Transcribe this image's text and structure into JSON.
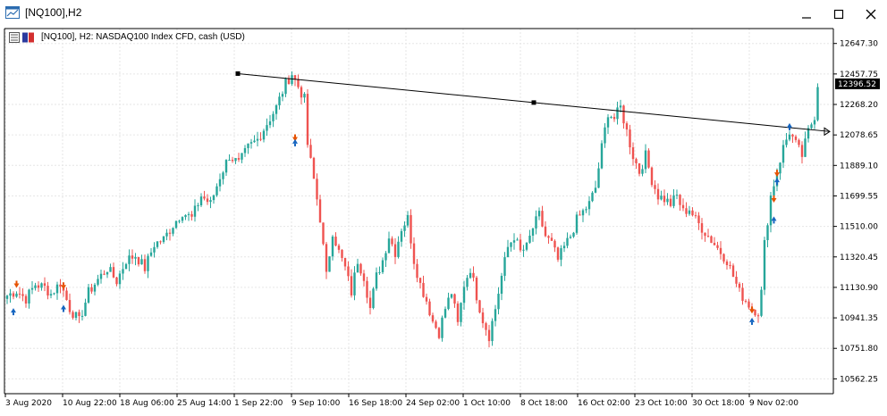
{
  "window": {
    "title": "[NQ100],H2",
    "icon": "chart-window-icon",
    "controls": [
      "minimize-icon",
      "maximize-icon",
      "close-icon"
    ]
  },
  "chart_info": "[NQ100], H2:  NASDAQ100 Index CFD, cash (USD)",
  "colors": {
    "bull": "#26a69a",
    "bear": "#ef5350",
    "grid": "#e6e6e6",
    "up_arrow": "#1565c0",
    "down_arrow": "#e65100",
    "price_label_bg": "#000000"
  },
  "chart_data": {
    "type": "candlestick",
    "symbol": "NQ100",
    "timeframe": "H2",
    "ylim": [
      10470,
      12740
    ],
    "yticks": [
      12647.3,
      12457.75,
      12268.2,
      12078.65,
      11889.1,
      11699.55,
      11510.0,
      11320.45,
      11130.9,
      10941.35,
      10751.8,
      10562.25
    ],
    "ytick_labels": [
      "12647.30",
      "12457.75",
      "12268.20",
      "12078.65",
      "11889.10",
      "11699.55",
      "11510.00",
      "11320.45",
      "11130.90",
      "10941.35",
      "10751.80",
      "10562.25"
    ],
    "xtick_labels": [
      "3 Aug 2020",
      "10 Aug 22:00",
      "18 Aug 06:00",
      "25 Aug 14:00",
      "1 Sep 22:00",
      "9 Sep 10:00",
      "16 Sep 18:00",
      "24 Sep 02:00",
      "1 Oct 10:00",
      "8 Oct 18:00",
      "16 Oct 02:00",
      "23 Oct 10:00",
      "30 Oct 18:00",
      "9 Nov 02:00"
    ],
    "current_price": 12396.52,
    "current_price_label": "12396.52",
    "close_path": [
      [
        0,
        11080
      ],
      [
        3,
        11110
      ],
      [
        6,
        11060
      ],
      [
        9,
        11150
      ],
      [
        12,
        11130
      ],
      [
        14,
        11090
      ],
      [
        17,
        11160
      ],
      [
        20,
        11000
      ],
      [
        23,
        10920
      ],
      [
        26,
        11100
      ],
      [
        29,
        11180
      ],
      [
        32,
        11250
      ],
      [
        35,
        11170
      ],
      [
        38,
        11300
      ],
      [
        41,
        11330
      ],
      [
        44,
        11250
      ],
      [
        47,
        11400
      ],
      [
        50,
        11430
      ],
      [
        53,
        11520
      ],
      [
        56,
        11600
      ],
      [
        59,
        11560
      ],
      [
        62,
        11700
      ],
      [
        65,
        11650
      ],
      [
        68,
        11820
      ],
      [
        71,
        11950
      ],
      [
        74,
        11900
      ],
      [
        77,
        12000
      ],
      [
        80,
        12050
      ],
      [
        83,
        12150
      ],
      [
        86,
        12250
      ],
      [
        89,
        12400
      ],
      [
        91,
        12460
      ],
      [
        93,
        12380
      ],
      [
        95,
        12300
      ],
      [
        96,
        12020
      ],
      [
        98,
        11800
      ],
      [
        100,
        11560
      ],
      [
        102,
        11200
      ],
      [
        104,
        11480
      ],
      [
        106,
        11350
      ],
      [
        108,
        11250
      ],
      [
        110,
        11100
      ],
      [
        112,
        11300
      ],
      [
        114,
        11200
      ],
      [
        116,
        11000
      ],
      [
        118,
        11200
      ],
      [
        120,
        11300
      ],
      [
        122,
        11450
      ],
      [
        124,
        11350
      ],
      [
        126,
        11500
      ],
      [
        128,
        11560
      ],
      [
        130,
        11300
      ],
      [
        132,
        11150
      ],
      [
        134,
        11050
      ],
      [
        136,
        10920
      ],
      [
        138,
        10850
      ],
      [
        140,
        11000
      ],
      [
        142,
        11100
      ],
      [
        144,
        10900
      ],
      [
        146,
        11150
      ],
      [
        148,
        11250
      ],
      [
        150,
        11080
      ],
      [
        152,
        10930
      ],
      [
        154,
        10830
      ],
      [
        156,
        11000
      ],
      [
        158,
        11200
      ],
      [
        160,
        11380
      ],
      [
        162,
        11450
      ],
      [
        164,
        11350
      ],
      [
        166,
        11380
      ],
      [
        168,
        11500
      ],
      [
        170,
        11580
      ],
      [
        172,
        11450
      ],
      [
        174,
        11400
      ],
      [
        176,
        11300
      ],
      [
        178,
        11380
      ],
      [
        180,
        11450
      ],
      [
        182,
        11550
      ],
      [
        184,
        11600
      ],
      [
        186,
        11650
      ],
      [
        188,
        11750
      ],
      [
        190,
        12000
      ],
      [
        192,
        12220
      ],
      [
        194,
        12180
      ],
      [
        196,
        12250
      ],
      [
        198,
        12100
      ],
      [
        200,
        11950
      ],
      [
        202,
        11850
      ],
      [
        204,
        11950
      ],
      [
        206,
        11800
      ],
      [
        208,
        11700
      ],
      [
        210,
        11680
      ],
      [
        212,
        11650
      ],
      [
        214,
        11700
      ],
      [
        216,
        11600
      ],
      [
        218,
        11620
      ],
      [
        220,
        11550
      ],
      [
        222,
        11500
      ],
      [
        224,
        11450
      ],
      [
        226,
        11400
      ],
      [
        228,
        11350
      ],
      [
        230,
        11300
      ],
      [
        232,
        11200
      ],
      [
        234,
        11100
      ],
      [
        236,
        11050
      ],
      [
        238,
        11000
      ],
      [
        240,
        10980
      ],
      [
        241,
        11100
      ],
      [
        242,
        11400
      ],
      [
        244,
        11700
      ],
      [
        246,
        11850
      ],
      [
        248,
        12000
      ],
      [
        250,
        12100
      ],
      [
        252,
        12020
      ],
      [
        254,
        11950
      ],
      [
        256,
        12100
      ],
      [
        258,
        12200
      ],
      [
        259,
        12396.52
      ]
    ],
    "trendline": {
      "from": [
        0,
        12460
      ],
      "to": [
        1,
        12100
      ],
      "anchor_points": [
        [
          0,
          12460
        ],
        [
          0.5,
          12280
        ]
      ]
    },
    "signals": [
      {
        "type": "up",
        "bar": 2,
        "price": 10980
      },
      {
        "type": "down",
        "bar": 3,
        "price": 11150
      },
      {
        "type": "up",
        "bar": 18,
        "price": 11000
      },
      {
        "type": "down",
        "bar": 18,
        "price": 11140
      },
      {
        "type": "down",
        "bar": 92,
        "price": 12060
      },
      {
        "type": "up",
        "bar": 92,
        "price": 12030
      },
      {
        "type": "up",
        "bar": 238,
        "price": 10920
      },
      {
        "type": "down",
        "bar": 238,
        "price": 10990
      },
      {
        "type": "up",
        "bar": 245,
        "price": 11550
      },
      {
        "type": "down",
        "bar": 245,
        "price": 11680
      },
      {
        "type": "up",
        "bar": 246,
        "price": 11790
      },
      {
        "type": "down",
        "bar": 246,
        "price": 11840
      },
      {
        "type": "up",
        "bar": 250,
        "price": 12130
      }
    ]
  }
}
